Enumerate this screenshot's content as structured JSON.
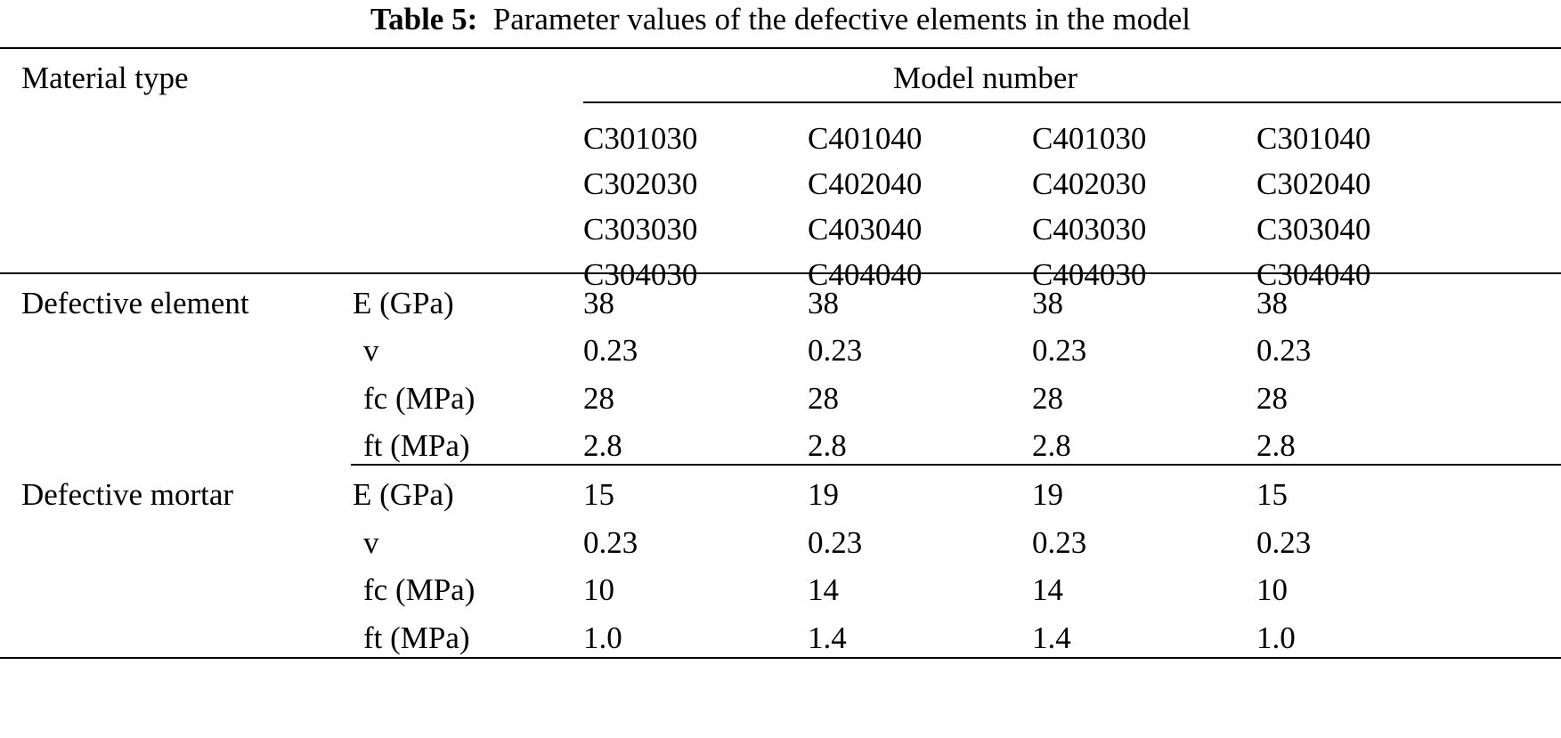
{
  "caption": {
    "label": "Table 5:",
    "text": "Parameter values of the defective elements in the model"
  },
  "header": {
    "material_type": "Material type",
    "model_number": "Model number",
    "model_columns": [
      [
        "C301030",
        "C302030",
        "C303030",
        "C304030"
      ],
      [
        "C401040",
        "C402040",
        "C403040",
        "C404040"
      ],
      [
        "C401030",
        "C402030",
        "C403030",
        "C404030"
      ],
      [
        "C301040",
        "C302040",
        "C303040",
        "C304040"
      ]
    ]
  },
  "groups": [
    {
      "material": "Defective element",
      "rows": [
        {
          "param": "E (GPa)",
          "values": [
            "38",
            "38",
            "38",
            "38"
          ]
        },
        {
          "param": "v",
          "values": [
            "0.23",
            "0.23",
            "0.23",
            "0.23"
          ]
        },
        {
          "param": "fc (MPa)",
          "values": [
            "28",
            "28",
            "28",
            "28"
          ]
        },
        {
          "param": "ft (MPa)",
          "values": [
            "2.8",
            "2.8",
            "2.8",
            "2.8"
          ]
        }
      ]
    },
    {
      "material": "Defective mortar",
      "rows": [
        {
          "param": "E (GPa)",
          "values": [
            "15",
            "19",
            "19",
            "15"
          ]
        },
        {
          "param": "v",
          "values": [
            "0.23",
            "0.23",
            "0.23",
            "0.23"
          ]
        },
        {
          "param": "fc (MPa)",
          "values": [
            "10",
            "14",
            "14",
            "10"
          ]
        },
        {
          "param": "ft (MPa)",
          "values": [
            "1.0",
            "1.4",
            "1.4",
            "1.0"
          ]
        }
      ]
    }
  ]
}
